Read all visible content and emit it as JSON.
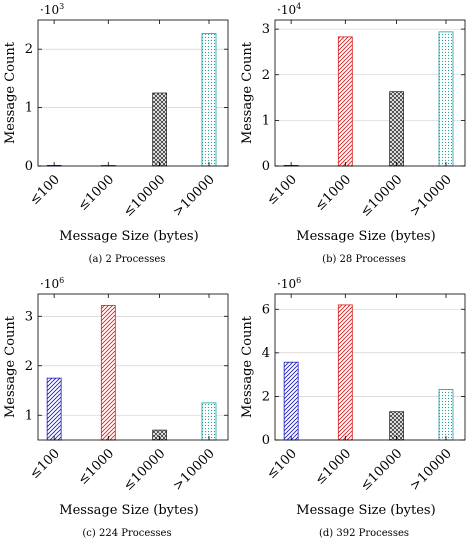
{
  "chart_data": [
    {
      "type": "bar",
      "caption": "(a) 2 Processes",
      "categories": [
        "≤100",
        "≤1000",
        "≤10000",
        ">10000"
      ],
      "values": [
        2,
        5,
        1250,
        2270
      ],
      "multiplier_base": "·10",
      "multiplier_exp": "3",
      "scale": 1000,
      "yticks": [
        0,
        1,
        2
      ],
      "ylim": [
        0,
        2500
      ],
      "xlabel": "Message Size (bytes)",
      "ylabel": "Message Count",
      "colors": [
        "#1f1fbf",
        "#d62020",
        "#333333",
        "#1f9f9f"
      ],
      "patterns": [
        "diagonal-right",
        "diagonal-left",
        "crosshatch",
        "dots"
      ],
      "grid": true
    },
    {
      "type": "bar",
      "caption": "(b) 28 Processes",
      "categories": [
        "≤100",
        "≤1000",
        "≤10000",
        ">10000"
      ],
      "values": [
        30,
        28300,
        16300,
        29400
      ],
      "multiplier_base": "·10",
      "multiplier_exp": "4",
      "scale": 10000,
      "yticks": [
        0,
        1,
        2,
        3
      ],
      "ylim": [
        0,
        32000
      ],
      "xlabel": "Message Size (bytes)",
      "ylabel": "Message Count",
      "colors": [
        "#1f1fbf",
        "#d62020",
        "#333333",
        "#1f9f9f"
      ],
      "patterns": [
        "diagonal-right",
        "diagonal-left",
        "crosshatch",
        "dots"
      ],
      "grid": true
    },
    {
      "type": "bar",
      "caption": "(c) 224 Processes",
      "categories": [
        "≤100",
        "≤1000",
        "≤10000",
        ">10000"
      ],
      "values": [
        1750000,
        3220000,
        700000,
        1250000
      ],
      "multiplier_base": "·10",
      "multiplier_exp": "6",
      "scale": 1000000,
      "yticks": [
        1,
        2,
        3
      ],
      "ylim": [
        500000,
        3450000
      ],
      "xlabel": "Message Size (bytes)",
      "ylabel": "Message Count",
      "colors": [
        "#1f1fbf",
        "#d62020",
        "#333333",
        "#1f9f9f"
      ],
      "patterns": [
        "diagonal-right",
        "diagonal-left",
        "crosshatch",
        "dots"
      ],
      "grid": true
    },
    {
      "type": "bar",
      "caption": "(d) 392 Processes",
      "categories": [
        "≤100",
        "≤1000",
        "≤10000",
        ">10000"
      ],
      "values": [
        3570000,
        6200000,
        1300000,
        2320000
      ],
      "multiplier_base": "·10",
      "multiplier_exp": "6",
      "scale": 1000000,
      "yticks": [
        0,
        2,
        4,
        6
      ],
      "ylim": [
        0,
        6700000
      ],
      "xlabel": "Message Size (bytes)",
      "ylabel": "Message Count",
      "colors": [
        "#1f1fbf",
        "#d62020",
        "#333333",
        "#1f9f9f"
      ],
      "patterns": [
        "diagonal-right",
        "diagonal-left",
        "crosshatch",
        "dots"
      ],
      "grid": true
    }
  ]
}
